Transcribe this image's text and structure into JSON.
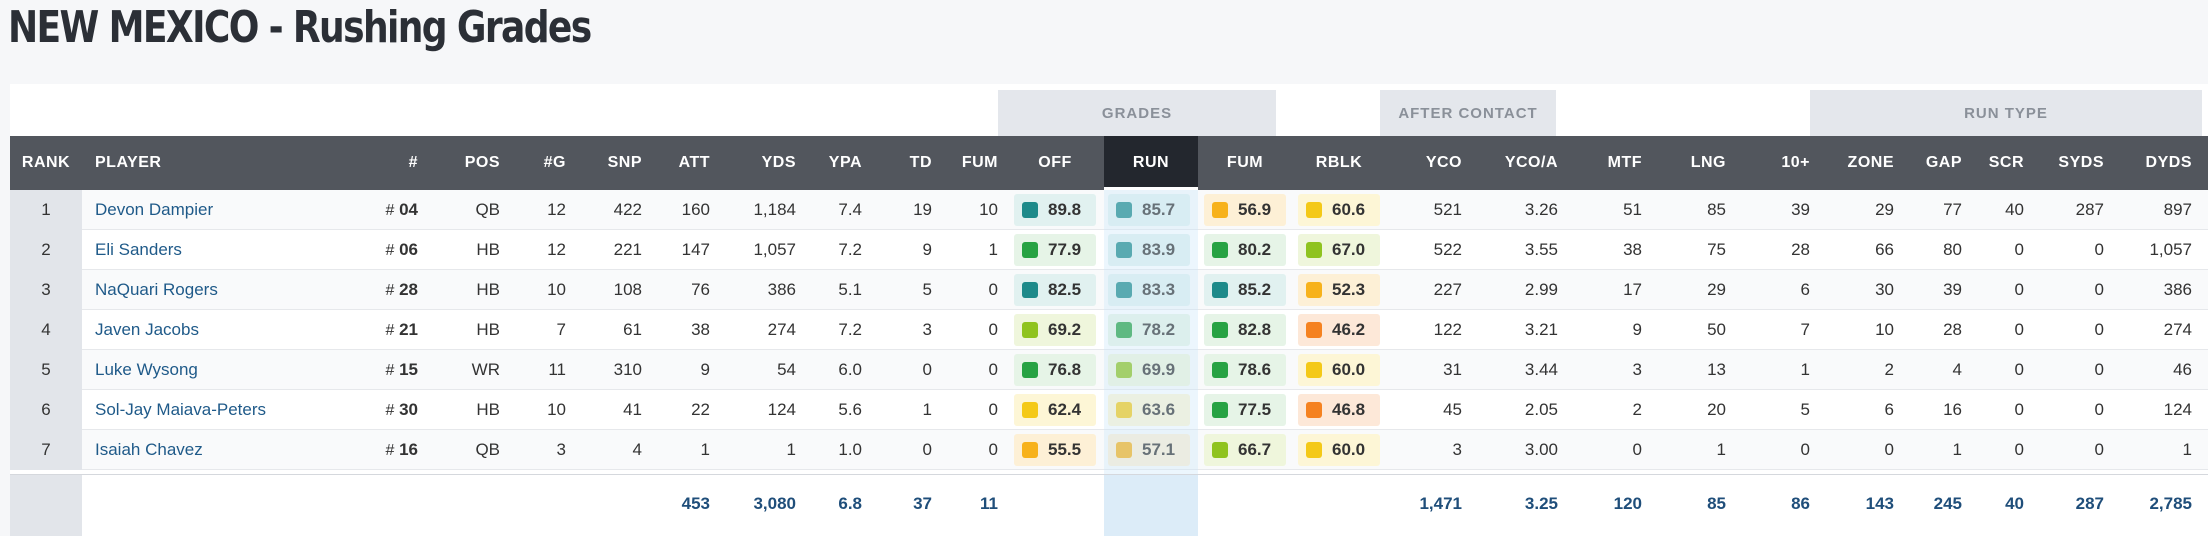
{
  "page": {
    "title": "NEW MEXICO - Rushing Grades"
  },
  "groups": {
    "grades": "GRADES",
    "after_contact": "AFTER CONTACT",
    "run_type": "RUN TYPE"
  },
  "headers": {
    "rank": "RANK",
    "player": "PLAYER",
    "num": "#",
    "pos": "POS",
    "g": "#G",
    "snp": "SNP",
    "att": "ATT",
    "yds": "YDS",
    "ypa": "YPA",
    "td": "TD",
    "fum": "FUM",
    "off": "OFF",
    "run": "RUN",
    "fum_grade": "FUM",
    "rblk": "RBLK",
    "yco": "YCO",
    "yco_a": "YCO/A",
    "mtf": "MTF",
    "lng": "LNG",
    "ten_plus": "10+",
    "zone": "ZONE",
    "gap": "GAP",
    "scr": "SCR",
    "syds": "SYDS",
    "dyds": "DYDS"
  },
  "grade_colors": {
    "teal": "#1e8a8a",
    "green": "#27a243",
    "lime": "#8fc31f",
    "yellow": "#f4c918",
    "gold": "#f7b21b",
    "orange": "#f58220"
  },
  "rows": [
    {
      "rank": "1",
      "player": "Devon Dampier",
      "hash": "#",
      "num": "04",
      "pos": "QB",
      "g": "12",
      "snp": "422",
      "att": "160",
      "yds": "1,184",
      "ypa": "7.4",
      "td": "19",
      "fum": "10",
      "off": "89.8",
      "off_c": "teal",
      "run": "85.7",
      "run_c": "teal",
      "fumg": "56.9",
      "fumg_c": "gold",
      "rblk": "60.6",
      "rblk_c": "yellow",
      "yco": "521",
      "yco_a": "3.26",
      "mtf": "51",
      "lng": "85",
      "ten": "39",
      "zone": "29",
      "gap": "77",
      "scr": "40",
      "syds": "287",
      "dyds": "897"
    },
    {
      "rank": "2",
      "player": "Eli Sanders",
      "hash": "#",
      "num": "06",
      "pos": "HB",
      "g": "12",
      "snp": "221",
      "att": "147",
      "yds": "1,057",
      "ypa": "7.2",
      "td": "9",
      "fum": "1",
      "off": "77.9",
      "off_c": "green",
      "run": "83.9",
      "run_c": "teal",
      "fumg": "80.2",
      "fumg_c": "green",
      "rblk": "67.0",
      "rblk_c": "lime",
      "yco": "522",
      "yco_a": "3.55",
      "mtf": "38",
      "lng": "75",
      "ten": "28",
      "zone": "66",
      "gap": "80",
      "scr": "0",
      "syds": "0",
      "dyds": "1,057"
    },
    {
      "rank": "3",
      "player": "NaQuari Rogers",
      "hash": "#",
      "num": "28",
      "pos": "HB",
      "g": "10",
      "snp": "108",
      "att": "76",
      "yds": "386",
      "ypa": "5.1",
      "td": "5",
      "fum": "0",
      "off": "82.5",
      "off_c": "teal",
      "run": "83.3",
      "run_c": "teal",
      "fumg": "85.2",
      "fumg_c": "teal",
      "rblk": "52.3",
      "rblk_c": "gold",
      "yco": "227",
      "yco_a": "2.99",
      "mtf": "17",
      "lng": "29",
      "ten": "6",
      "zone": "30",
      "gap": "39",
      "scr": "0",
      "syds": "0",
      "dyds": "386"
    },
    {
      "rank": "4",
      "player": "Javen Jacobs",
      "hash": "#",
      "num": "21",
      "pos": "HB",
      "g": "7",
      "snp": "61",
      "att": "38",
      "yds": "274",
      "ypa": "7.2",
      "td": "3",
      "fum": "0",
      "off": "69.2",
      "off_c": "lime",
      "run": "78.2",
      "run_c": "green",
      "fumg": "82.8",
      "fumg_c": "green",
      "rblk": "46.2",
      "rblk_c": "orange",
      "yco": "122",
      "yco_a": "3.21",
      "mtf": "9",
      "lng": "50",
      "ten": "7",
      "zone": "10",
      "gap": "28",
      "scr": "0",
      "syds": "0",
      "dyds": "274"
    },
    {
      "rank": "5",
      "player": "Luke Wysong",
      "hash": "#",
      "num": "15",
      "pos": "WR",
      "g": "11",
      "snp": "310",
      "att": "9",
      "yds": "54",
      "ypa": "6.0",
      "td": "0",
      "fum": "0",
      "off": "76.8",
      "off_c": "green",
      "run": "69.9",
      "run_c": "lime",
      "fumg": "78.6",
      "fumg_c": "green",
      "rblk": "60.0",
      "rblk_c": "yellow",
      "yco": "31",
      "yco_a": "3.44",
      "mtf": "3",
      "lng": "13",
      "ten": "1",
      "zone": "2",
      "gap": "4",
      "scr": "0",
      "syds": "0",
      "dyds": "46"
    },
    {
      "rank": "6",
      "player": "Sol-Jay Maiava-Peters",
      "hash": "#",
      "num": "30",
      "pos": "HB",
      "g": "10",
      "snp": "41",
      "att": "22",
      "yds": "124",
      "ypa": "5.6",
      "td": "1",
      "fum": "0",
      "off": "62.4",
      "off_c": "yellow",
      "run": "63.6",
      "run_c": "yellow",
      "fumg": "77.5",
      "fumg_c": "green",
      "rblk": "46.8",
      "rblk_c": "orange",
      "yco": "45",
      "yco_a": "2.05",
      "mtf": "2",
      "lng": "20",
      "ten": "5",
      "zone": "6",
      "gap": "16",
      "scr": "0",
      "syds": "0",
      "dyds": "124"
    },
    {
      "rank": "7",
      "player": "Isaiah Chavez",
      "hash": "#",
      "num": "16",
      "pos": "QB",
      "g": "3",
      "snp": "4",
      "att": "1",
      "yds": "1",
      "ypa": "1.0",
      "td": "0",
      "fum": "0",
      "off": "55.5",
      "off_c": "gold",
      "run": "57.1",
      "run_c": "gold",
      "fumg": "66.7",
      "fumg_c": "lime",
      "rblk": "60.0",
      "rblk_c": "yellow",
      "yco": "3",
      "yco_a": "3.00",
      "mtf": "0",
      "lng": "1",
      "ten": "0",
      "zone": "0",
      "gap": "1",
      "scr": "0",
      "syds": "0",
      "dyds": "1"
    }
  ],
  "totals": {
    "att": "453",
    "yds": "3,080",
    "ypa": "6.8",
    "td": "37",
    "fum": "11",
    "yco": "1,471",
    "yco_a": "3.25",
    "mtf": "120",
    "lng": "85",
    "ten": "86",
    "zone": "143",
    "gap": "245",
    "scr": "40",
    "syds": "287",
    "dyds": "2,785"
  }
}
